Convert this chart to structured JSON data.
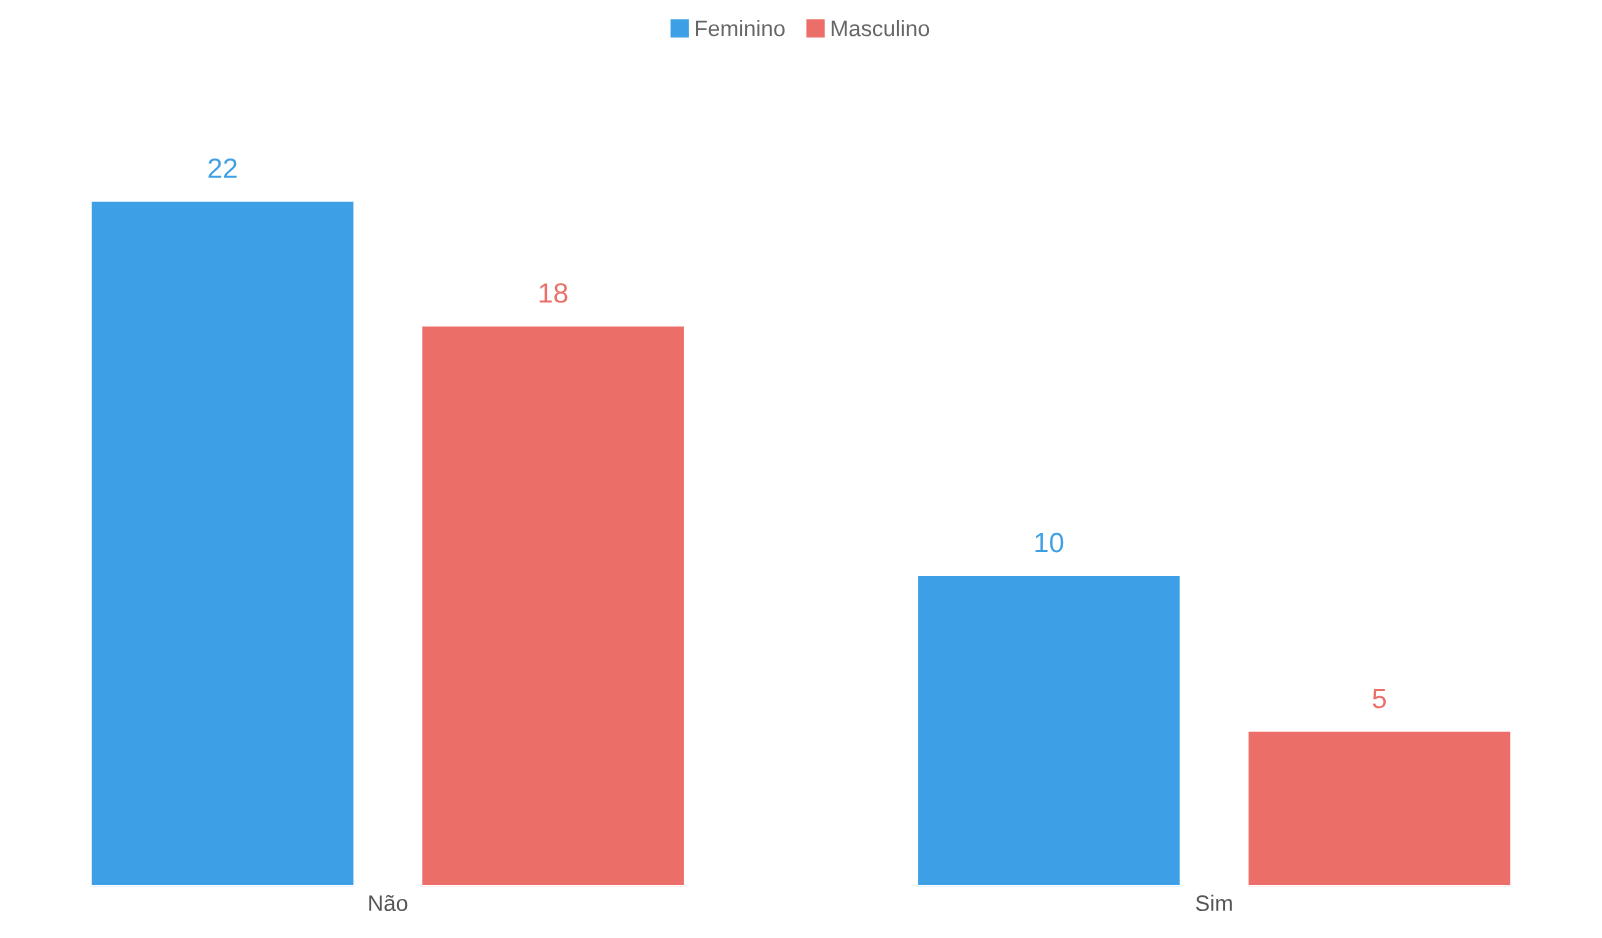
{
  "chart_data": {
    "type": "bar",
    "categories": [
      "Não",
      "Sim"
    ],
    "series": [
      {
        "name": "Feminino",
        "color": "#3da0e6",
        "values": [
          22,
          10
        ]
      },
      {
        "name": "Masculino",
        "color": "#ec6e68",
        "values": [
          18,
          5
        ]
      }
    ],
    "data_labels": true,
    "legend": "top",
    "grid": false
  }
}
